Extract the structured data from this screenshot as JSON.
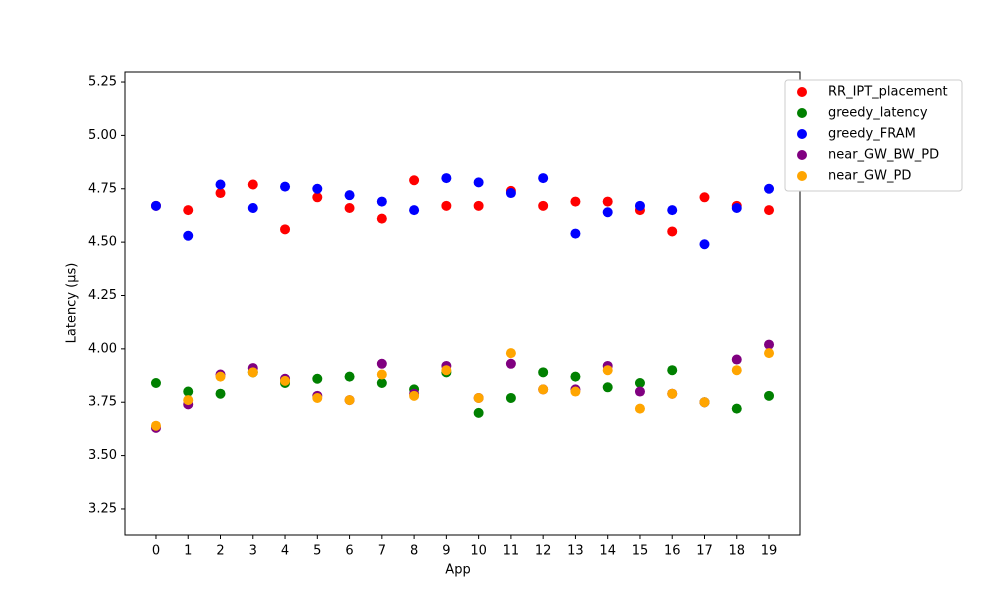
{
  "chart_data": {
    "type": "scatter",
    "xlabel": "App",
    "ylabel": "Latency (µs)",
    "x": [
      0,
      1,
      2,
      3,
      4,
      5,
      6,
      7,
      8,
      9,
      10,
      11,
      12,
      13,
      14,
      15,
      16,
      17,
      18,
      19
    ],
    "xlim": [
      -0.96,
      19.96
    ],
    "xticks": [
      0,
      1,
      2,
      3,
      4,
      5,
      6,
      7,
      8,
      9,
      10,
      11,
      12,
      13,
      14,
      15,
      16,
      17,
      18,
      19
    ],
    "ylim": [
      3.128,
      5.297
    ],
    "yticks": [
      3.25,
      {
        "value": 3.5,
        "label": "3.50"
      },
      3.75,
      {
        "value": 4,
        "label": "4.00"
      },
      4.25,
      {
        "value": 4.5,
        "label": "4.50"
      },
      4.75,
      {
        "value": 5,
        "label": "5.00"
      },
      5.25
    ],
    "grid": false,
    "legend": "outside-upper-right",
    "series": [
      {
        "name": "RR_IPT_placement",
        "color": "#ff0000",
        "values": [
          4.67,
          4.65,
          4.73,
          4.77,
          4.56,
          4.71,
          4.66,
          4.61,
          4.79,
          4.67,
          4.67,
          4.74,
          4.67,
          4.69,
          4.69,
          4.65,
          4.55,
          4.71,
          4.67,
          4.65
        ]
      },
      {
        "name": "greedy_latency",
        "color": "#008000",
        "values": [
          3.84,
          3.8,
          3.79,
          3.89,
          3.84,
          3.86,
          3.87,
          3.84,
          3.81,
          3.89,
          3.7,
          3.77,
          3.89,
          3.87,
          3.82,
          3.84,
          3.9,
          3.75,
          3.72,
          3.78
        ]
      },
      {
        "name": "greedy_FRAM",
        "color": "#0000ff",
        "values": [
          4.67,
          4.53,
          4.77,
          4.66,
          4.76,
          4.75,
          4.72,
          4.69,
          4.65,
          4.8,
          4.78,
          4.73,
          4.8,
          4.54,
          4.64,
          4.67,
          4.65,
          4.49,
          4.66,
          4.75
        ]
      },
      {
        "name": "near_GW_BW_PD",
        "color": "#800080",
        "values": [
          3.63,
          3.74,
          3.88,
          3.91,
          3.86,
          3.78,
          3.76,
          3.93,
          3.79,
          3.92,
          3.77,
          3.93,
          3.81,
          3.81,
          3.92,
          3.8,
          3.79,
          3.75,
          3.95,
          4.02
        ]
      },
      {
        "name": "near_GW_PD",
        "color": "#ffa500",
        "values": [
          3.64,
          3.76,
          3.87,
          3.89,
          3.85,
          3.77,
          3.76,
          3.88,
          3.78,
          3.9,
          3.77,
          3.98,
          3.81,
          3.8,
          3.9,
          3.72,
          3.79,
          3.75,
          3.9,
          3.98
        ]
      }
    ]
  }
}
